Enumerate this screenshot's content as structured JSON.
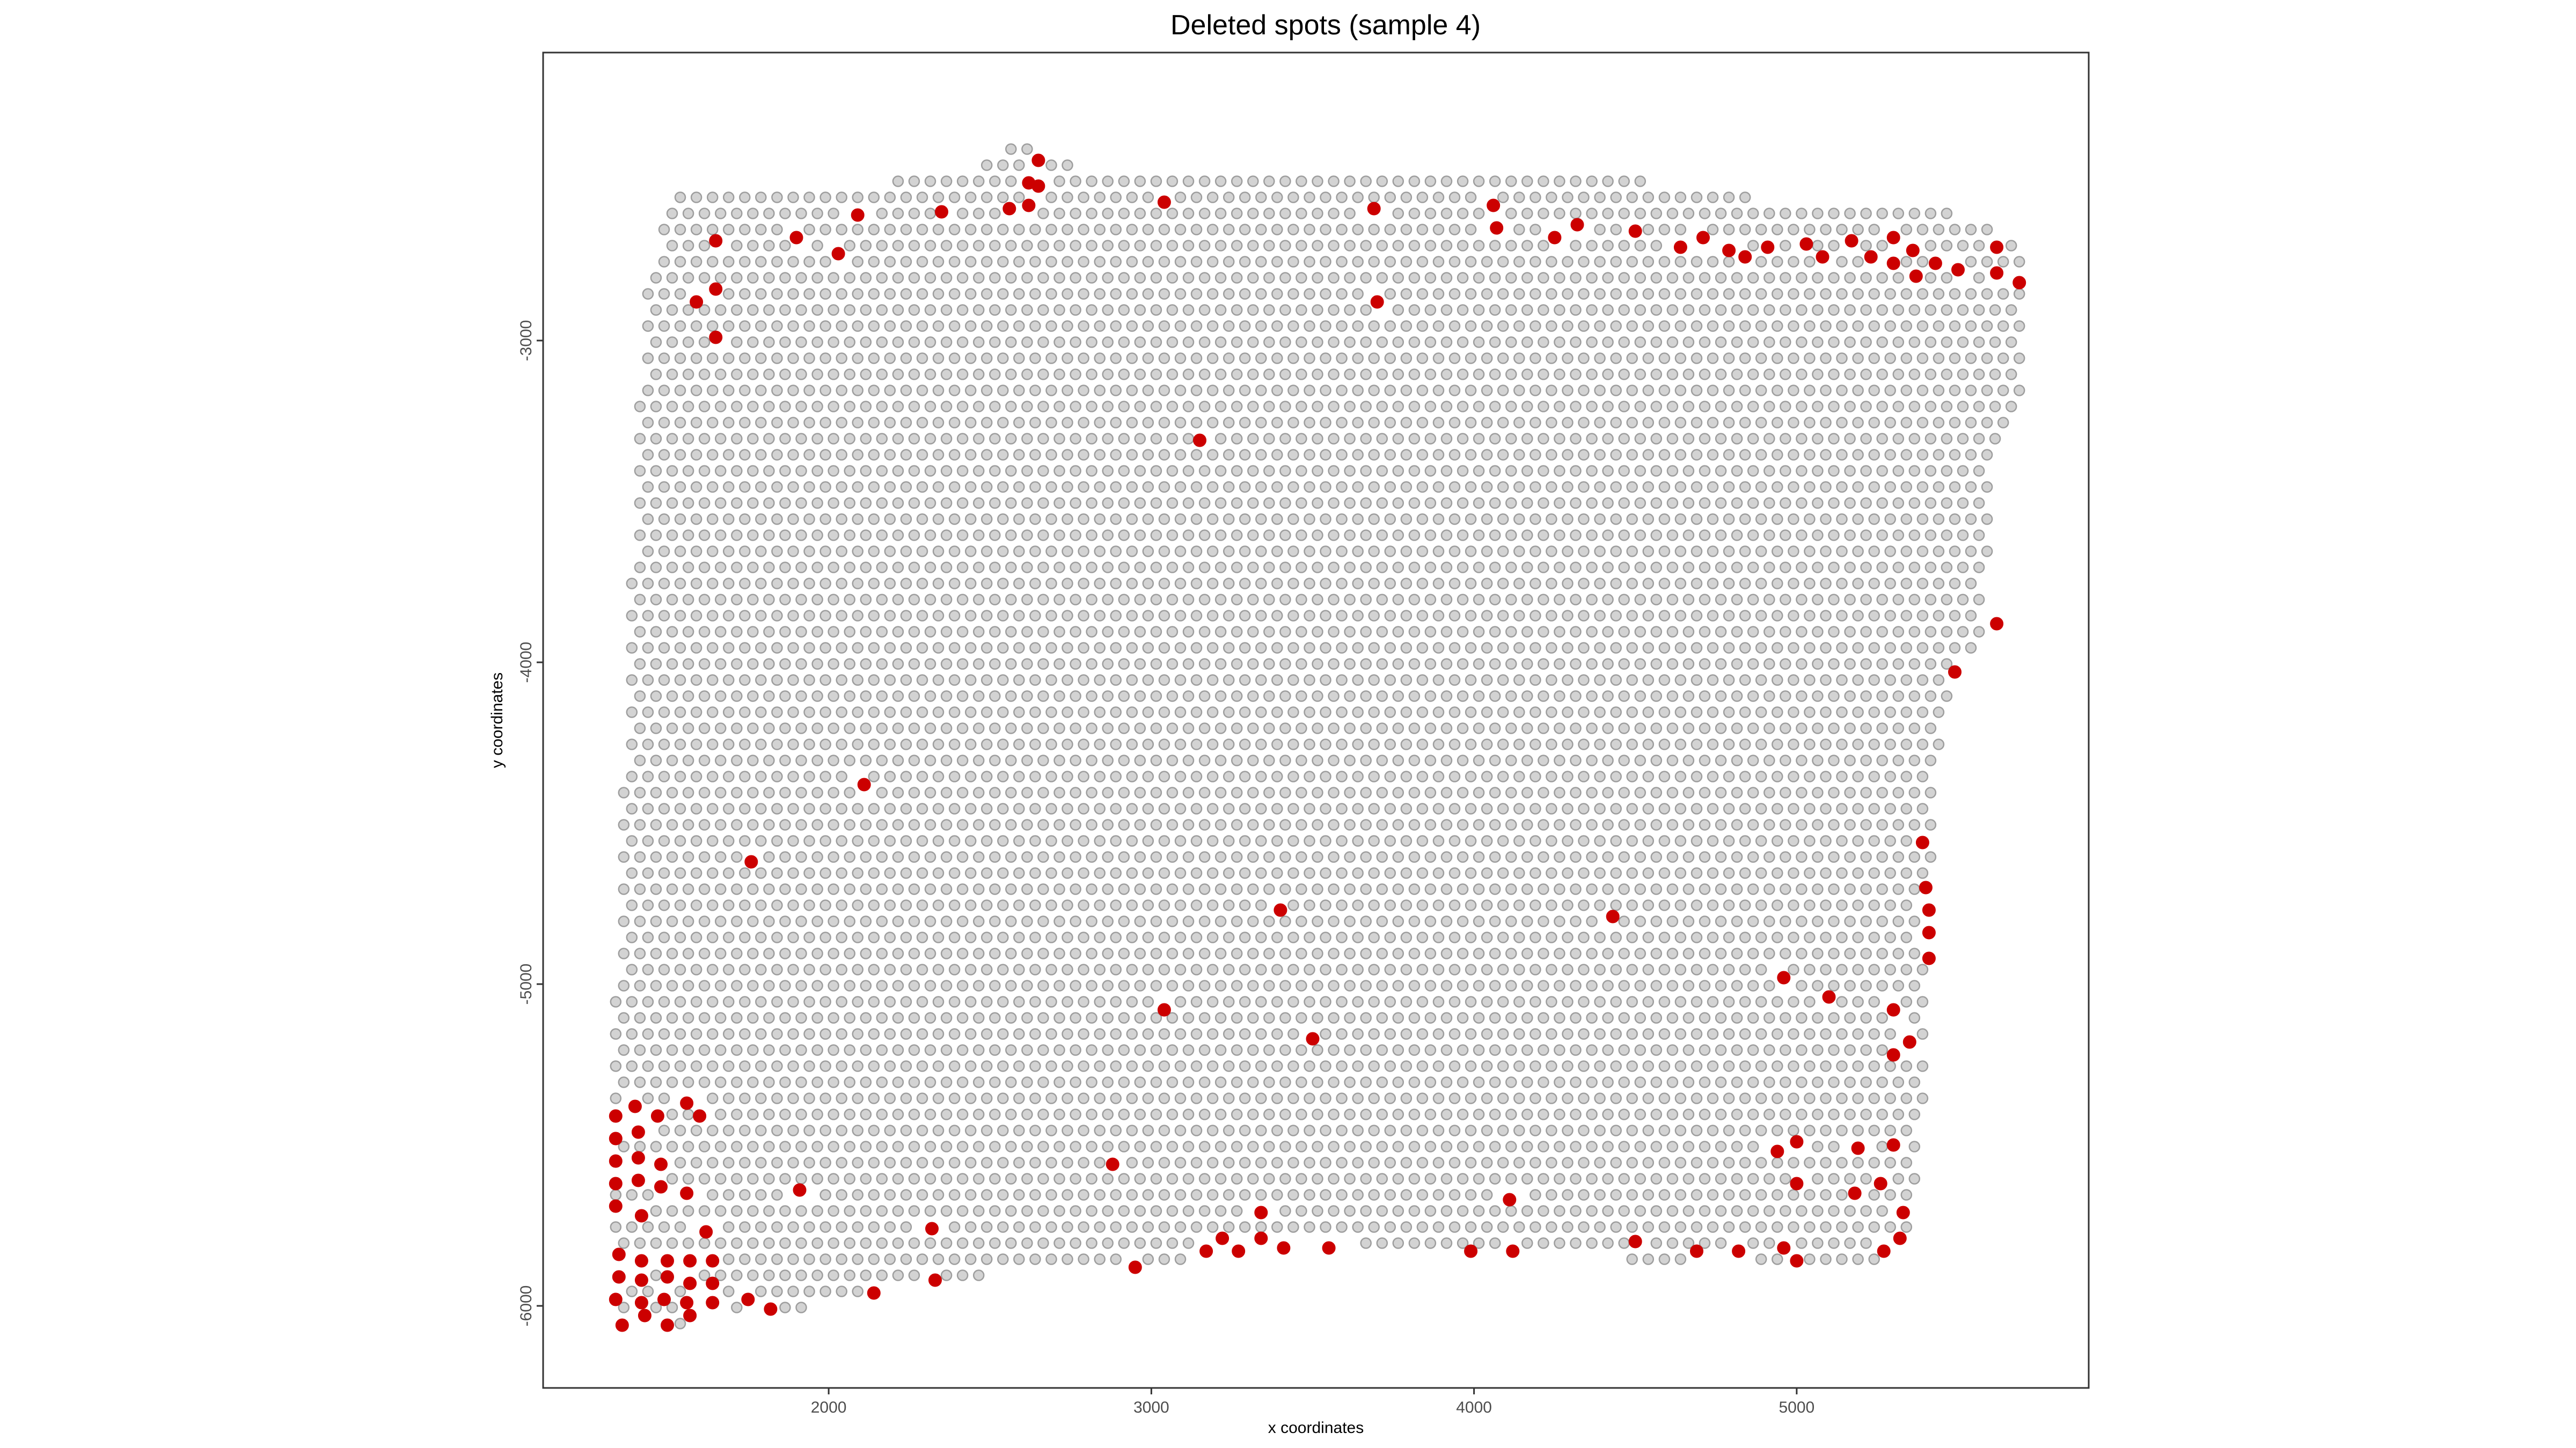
{
  "chart_data": {
    "type": "scatter",
    "title": "Deleted spots (sample 4)",
    "xlabel": "x coordinates",
    "ylabel": "y coordinates",
    "xlim": [
      1115,
      5905
    ],
    "ylim": [
      -6255,
      -2105
    ],
    "x_ticks": [
      {
        "value": 2000,
        "label": "2000"
      },
      {
        "value": 3000,
        "label": "3000"
      },
      {
        "value": 4000,
        "label": "4000"
      },
      {
        "value": 5000,
        "label": "5000"
      }
    ],
    "y_ticks": [
      {
        "value": -3000,
        "label": "-3000"
      },
      {
        "value": -4000,
        "label": "-4000"
      },
      {
        "value": -5000,
        "label": "-5000"
      },
      {
        "value": -6000,
        "label": "-6000"
      }
    ],
    "grid": false,
    "colors": {
      "kept": "#d3d3d3",
      "kept_outline": "#9e9e9e",
      "deleted": "#cc0000"
    },
    "kept_region": {
      "description_units": "data",
      "x_step": 50,
      "y_step": 50,
      "boundary": [
        [
          1330,
          -5230
        ],
        [
          1360,
          -4500
        ],
        [
          1380,
          -3950
        ],
        [
          1410,
          -3200
        ],
        [
          1440,
          -2770
        ],
        [
          1520,
          -2570
        ],
        [
          1600,
          -2510
        ],
        [
          1800,
          -2540
        ],
        [
          2100,
          -2520
        ],
        [
          2400,
          -2480
        ],
        [
          2600,
          -2370
        ],
        [
          2700,
          -2440
        ],
        [
          2900,
          -2480
        ],
        [
          3100,
          -2460
        ],
        [
          3400,
          -2470
        ],
        [
          3700,
          -2480
        ],
        [
          4000,
          -2470
        ],
        [
          4300,
          -2460
        ],
        [
          4600,
          -2520
        ],
        [
          4900,
          -2560
        ],
        [
          5200,
          -2570
        ],
        [
          5500,
          -2600
        ],
        [
          5690,
          -2700
        ],
        [
          5710,
          -3150
        ],
        [
          5600,
          -3400
        ],
        [
          5580,
          -3950
        ],
        [
          5480,
          -4000
        ],
        [
          5420,
          -4500
        ],
        [
          5400,
          -5300
        ],
        [
          5350,
          -5850
        ],
        [
          5100,
          -5870
        ],
        [
          4800,
          -5850
        ],
        [
          4500,
          -5860
        ],
        [
          4100,
          -5820
        ],
        [
          3800,
          -5810
        ],
        [
          3500,
          -5800
        ],
        [
          3200,
          -5830
        ],
        [
          2900,
          -5900
        ],
        [
          2500,
          -5900
        ],
        [
          2200,
          -5950
        ],
        [
          1950,
          -6000
        ],
        [
          1750,
          -6030
        ],
        [
          1500,
          -6080
        ],
        [
          1350,
          -6080
        ],
        [
          1310,
          -5600
        ]
      ]
    },
    "deleted_points": [
      [
        2650,
        -2440
      ],
      [
        2620,
        -2510
      ],
      [
        2650,
        -2520
      ],
      [
        2620,
        -2580
      ],
      [
        2560,
        -2590
      ],
      [
        2350,
        -2600
      ],
      [
        2090,
        -2610
      ],
      [
        3040,
        -2570
      ],
      [
        3690,
        -2590
      ],
      [
        4060,
        -2580
      ],
      [
        4070,
        -2650
      ],
      [
        4250,
        -2680
      ],
      [
        4320,
        -2640
      ],
      [
        4500,
        -2660
      ],
      [
        4640,
        -2710
      ],
      [
        4710,
        -2680
      ],
      [
        4790,
        -2720
      ],
      [
        4840,
        -2740
      ],
      [
        4910,
        -2710
      ],
      [
        5030,
        -2700
      ],
      [
        5080,
        -2740
      ],
      [
        5170,
        -2690
      ],
      [
        5230,
        -2740
      ],
      [
        5300,
        -2680
      ],
      [
        5300,
        -2760
      ],
      [
        5360,
        -2720
      ],
      [
        5370,
        -2800
      ],
      [
        5430,
        -2760
      ],
      [
        5500,
        -2780
      ],
      [
        5620,
        -2710
      ],
      [
        5620,
        -2790
      ],
      [
        5690,
        -2820
      ],
      [
        1900,
        -2680
      ],
      [
        2030,
        -2730
      ],
      [
        1650,
        -2690
      ],
      [
        1650,
        -2840
      ],
      [
        1590,
        -2880
      ],
      [
        1650,
        -2990
      ],
      [
        3700,
        -2880
      ],
      [
        3150,
        -3310
      ],
      [
        5620,
        -3880
      ],
      [
        5490,
        -4030
      ],
      [
        2110,
        -4380
      ],
      [
        1760,
        -4620
      ],
      [
        5390,
        -4560
      ],
      [
        5400,
        -4700
      ],
      [
        5410,
        -4770
      ],
      [
        5410,
        -4840
      ],
      [
        5410,
        -4920
      ],
      [
        3400,
        -4770
      ],
      [
        4430,
        -4790
      ],
      [
        3040,
        -5080
      ],
      [
        3500,
        -5170
      ],
      [
        4960,
        -4980
      ],
      [
        5100,
        -5040
      ],
      [
        5300,
        -5080
      ],
      [
        5300,
        -5220
      ],
      [
        5350,
        -5180
      ],
      [
        1340,
        -5410
      ],
      [
        1400,
        -5380
      ],
      [
        1470,
        -5410
      ],
      [
        1560,
        -5370
      ],
      [
        1600,
        -5410
      ],
      [
        1340,
        -5480
      ],
      [
        1410,
        -5460
      ],
      [
        1340,
        -5550
      ],
      [
        1410,
        -5540
      ],
      [
        1480,
        -5560
      ],
      [
        1340,
        -5620
      ],
      [
        1410,
        -5610
      ],
      [
        1480,
        -5630
      ],
      [
        1560,
        -5650
      ],
      [
        1340,
        -5690
      ],
      [
        1420,
        -5720
      ],
      [
        4940,
        -5520
      ],
      [
        5000,
        -5490
      ],
      [
        5190,
        -5510
      ],
      [
        5300,
        -5500
      ],
      [
        2880,
        -5560
      ],
      [
        1910,
        -5640
      ],
      [
        5000,
        -5620
      ],
      [
        5180,
        -5650
      ],
      [
        5260,
        -5620
      ],
      [
        4110,
        -5670
      ],
      [
        5330,
        -5710
      ],
      [
        3340,
        -5710
      ],
      [
        2320,
        -5760
      ],
      [
        1620,
        -5770
      ],
      [
        3220,
        -5790
      ],
      [
        3340,
        -5790
      ],
      [
        5320,
        -5790
      ],
      [
        1350,
        -5840
      ],
      [
        1420,
        -5860
      ],
      [
        1500,
        -5860
      ],
      [
        1570,
        -5860
      ],
      [
        1640,
        -5860
      ],
      [
        3170,
        -5830
      ],
      [
        3270,
        -5830
      ],
      [
        3410,
        -5820
      ],
      [
        3550,
        -5820
      ],
      [
        3990,
        -5830
      ],
      [
        4120,
        -5830
      ],
      [
        4500,
        -5800
      ],
      [
        4690,
        -5830
      ],
      [
        4820,
        -5830
      ],
      [
        4960,
        -5820
      ],
      [
        5000,
        -5860
      ],
      [
        5270,
        -5830
      ],
      [
        2950,
        -5880
      ],
      [
        2330,
        -5920
      ],
      [
        1350,
        -5910
      ],
      [
        1420,
        -5920
      ],
      [
        1500,
        -5910
      ],
      [
        1570,
        -5930
      ],
      [
        1640,
        -5930
      ],
      [
        1340,
        -5980
      ],
      [
        1420,
        -5990
      ],
      [
        1490,
        -5980
      ],
      [
        1560,
        -5990
      ],
      [
        1640,
        -5990
      ],
      [
        1750,
        -5980
      ],
      [
        1820,
        -6010
      ],
      [
        2140,
        -5960
      ],
      [
        1360,
        -6060
      ],
      [
        1430,
        -6030
      ],
      [
        1500,
        -6060
      ],
      [
        1570,
        -6030
      ]
    ]
  }
}
